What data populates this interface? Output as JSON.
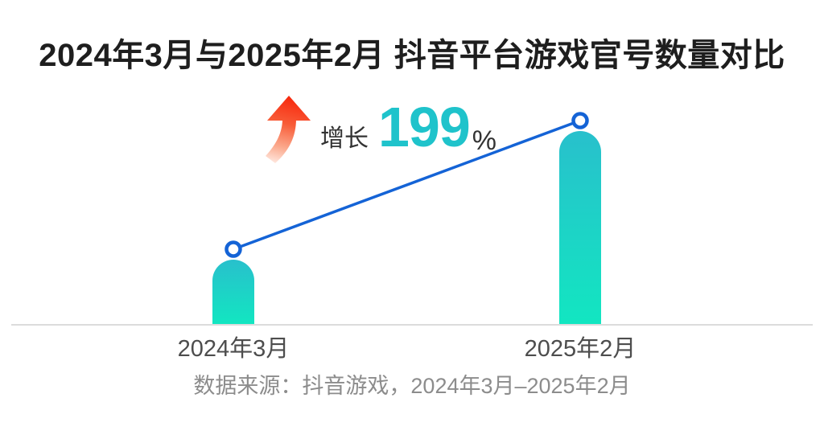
{
  "title": "2024年3月与2025年2月 抖音平台游戏官号数量对比",
  "growth_annotation": {
    "arrow_icon": "curved-up-arrow",
    "label": "增长",
    "value": "199",
    "unit": "%"
  },
  "source_note": "数据来源：抖音游戏，2024年3月–2025年2月",
  "chart_data": {
    "type": "bar",
    "title": "2024年3月与2025年2月 抖音平台游戏官号数量对比",
    "categories": [
      "2024年3月",
      "2025年2月"
    ],
    "values": [
      1,
      2.99
    ],
    "values_unit": "relative index (2024年3月 = 1); absolute counts not shown in image",
    "growth_percent": 199,
    "annotation": "增长 199%",
    "overlay_line": {
      "type": "line",
      "connects": "bar tops",
      "markers": "open circles"
    },
    "legend": "none",
    "grid": "off",
    "axes": "x baseline only, no y-axis, no tick values"
  },
  "colors": {
    "bar_gradient_top": "#28c0cc",
    "bar_gradient_bottom": "#12e6c1",
    "trend_line": "#1463d6",
    "growth_value_text": "#1fc3cb",
    "arrow_red_top": "#f7270c",
    "arrow_fade_bottom": "#ffeae2",
    "title_text": "#1e1e1e",
    "axis_label_text": "#4d4d4d",
    "source_text": "#8c8c8c",
    "baseline": "#dcdcdc",
    "background": "#ffffff"
  }
}
